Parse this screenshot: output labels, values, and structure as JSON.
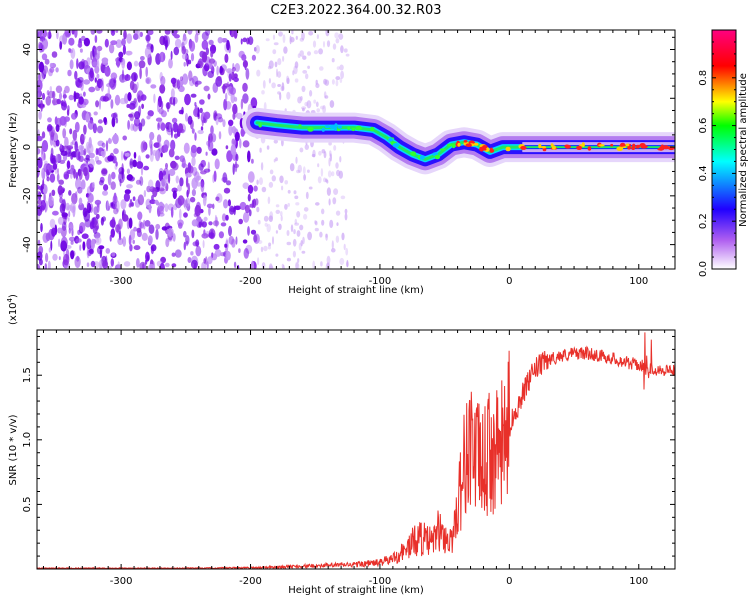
{
  "title": "C2E3.2022.364.00.32.R03",
  "chart_data": [
    {
      "type": "heatmap",
      "xlabel": "Height of straight line (km)",
      "ylabel": "Frequency (Hz)",
      "xlim": [
        -365,
        128
      ],
      "ylim": [
        -50,
        48
      ],
      "xticks": [
        -300,
        -200,
        -100,
        0,
        100
      ],
      "yticks": [
        -40,
        -20,
        0,
        20,
        40
      ],
      "colorbar": {
        "label": "Normalized spectral amplitude",
        "range": [
          0.0,
          1.0
        ],
        "ticks": [
          "0.0",
          "0.2",
          "0.4",
          "0.6",
          "0.8"
        ],
        "colors": [
          "#ffffff",
          "#8a2be2",
          "#0000ff",
          "#00ffff",
          "#00ff00",
          "#ffff00",
          "#ff0000",
          "#ff0080"
        ]
      },
      "ridge_frequency_track": {
        "x": [
          -195,
          -180,
          -160,
          -140,
          -120,
          -105,
          -95,
          -85,
          -75,
          -65,
          -55,
          -45,
          -35,
          -25,
          -15,
          -5,
          10,
          40,
          80,
          128
        ],
        "y": [
          10,
          9,
          8,
          8,
          8,
          7,
          4,
          0,
          -3,
          -5,
          -3,
          1,
          2,
          1,
          -2,
          0,
          0,
          0,
          0,
          0
        ]
      },
      "noise_region_x": [
        -365,
        -195
      ],
      "sparse_noise_region_x": [
        -195,
        -125
      ]
    },
    {
      "type": "line",
      "xlabel": "Height of straight line (km)",
      "ylabel": "SNR (10 * v/v)",
      "y_multiplier_label": "(x10",
      "y_multiplier_exp": "4",
      "xlim": [
        -365,
        128
      ],
      "ylim": [
        0,
        18500
      ],
      "xticks": [
        -300,
        -200,
        -100,
        0,
        100
      ],
      "yticks": [
        0.5,
        1.0,
        1.5
      ],
      "ytick_labels": [
        "0.5",
        "1.0",
        "1.5"
      ],
      "color": "#e8302a",
      "series": [
        {
          "x": [
            -365,
            -300,
            -250,
            -200,
            -180,
            -150,
            -120,
            -100,
            -90,
            -80,
            -70,
            -60,
            -55,
            -50,
            -45,
            -40,
            -35,
            -30,
            -25,
            -20,
            -15,
            -10,
            -5,
            0,
            10,
            20,
            30,
            40,
            50,
            60,
            70,
            80,
            90,
            100,
            105,
            110,
            120,
            128
          ],
          "y": [
            60,
            60,
            60,
            100,
            150,
            250,
            350,
            500,
            800,
            1500,
            2500,
            2000,
            3000,
            2500,
            2000,
            5000,
            8000,
            10000,
            8500,
            8000,
            9000,
            9000,
            9500,
            11000,
            13500,
            15500,
            16200,
            16500,
            16700,
            16700,
            16500,
            16300,
            16000,
            15800,
            15600,
            15500,
            15400,
            15400
          ]
        }
      ]
    }
  ]
}
